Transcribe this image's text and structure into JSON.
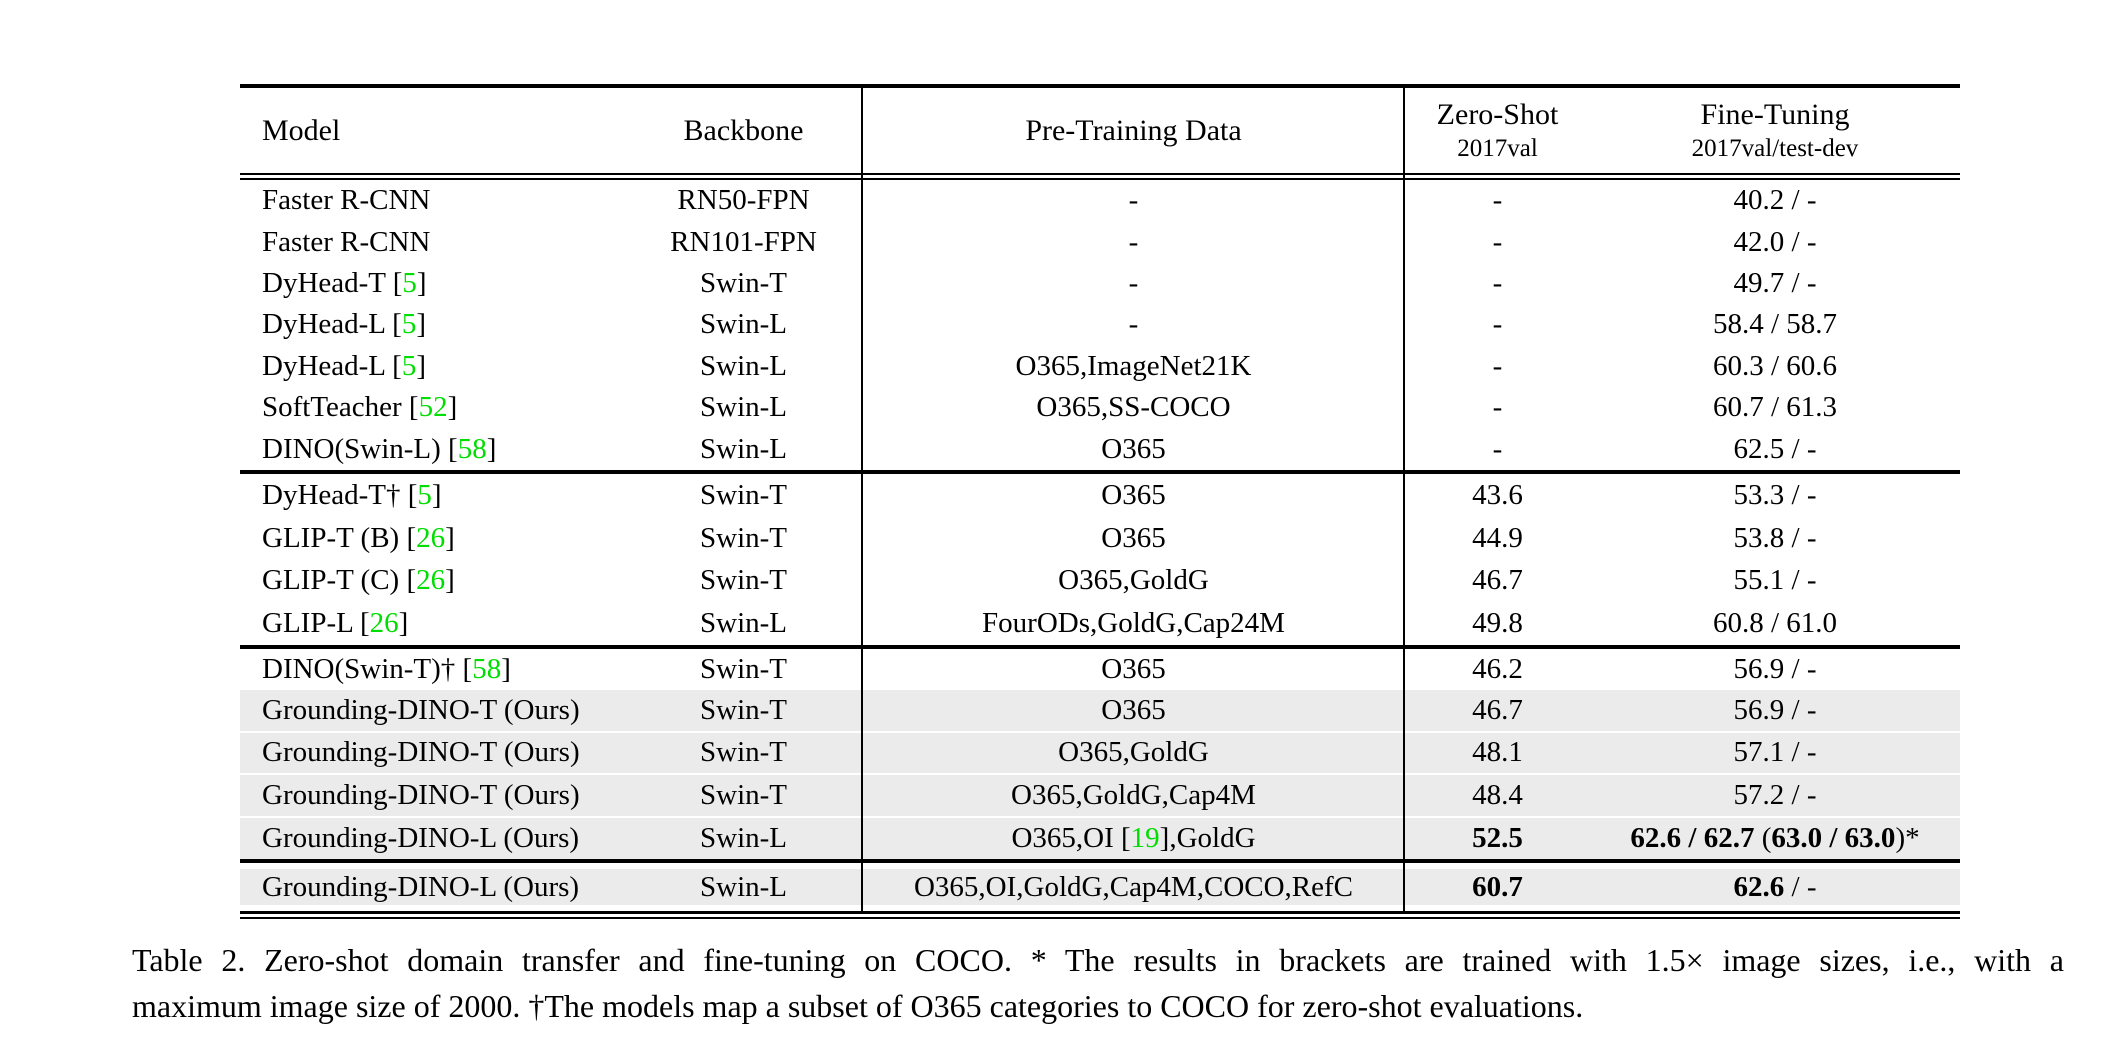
{
  "colors": {
    "citation_green": "#00dd00",
    "row_shade": "#ebebeb",
    "text": "#000000",
    "background": "#ffffff"
  },
  "table": {
    "columns": [
      {
        "id": "model",
        "label": "Model",
        "sub": ""
      },
      {
        "id": "backbone",
        "label": "Backbone",
        "sub": ""
      },
      {
        "id": "pretrain",
        "label": "Pre-Training Data",
        "sub": ""
      },
      {
        "id": "zeroshot",
        "label": "Zero-Shot",
        "sub": "2017val"
      },
      {
        "id": "finetuning",
        "label": "Fine-Tuning",
        "sub": "2017val/test-dev"
      }
    ],
    "sections": [
      {
        "rows": [
          {
            "shaded": false,
            "cells": {
              "model": [
                {
                  "t": "Faster R-CNN"
                }
              ],
              "backbone": [
                {
                  "t": "RN50-FPN"
                }
              ],
              "pretrain": [
                {
                  "t": "-"
                }
              ],
              "zeroshot": [
                {
                  "t": "-"
                }
              ],
              "finetuning": [
                {
                  "t": "40.2 / -"
                }
              ]
            }
          },
          {
            "shaded": false,
            "cells": {
              "model": [
                {
                  "t": "Faster R-CNN"
                }
              ],
              "backbone": [
                {
                  "t": "RN101-FPN"
                }
              ],
              "pretrain": [
                {
                  "t": "-"
                }
              ],
              "zeroshot": [
                {
                  "t": "-"
                }
              ],
              "finetuning": [
                {
                  "t": "42.0 / -"
                }
              ]
            }
          },
          {
            "shaded": false,
            "cells": {
              "model": [
                {
                  "t": "DyHead-T ["
                },
                {
                  "t": "5",
                  "g": true
                },
                {
                  "t": "]"
                }
              ],
              "backbone": [
                {
                  "t": "Swin-T"
                }
              ],
              "pretrain": [
                {
                  "t": "-"
                }
              ],
              "zeroshot": [
                {
                  "t": "-"
                }
              ],
              "finetuning": [
                {
                  "t": "49.7 / -"
                }
              ]
            }
          },
          {
            "shaded": false,
            "cells": {
              "model": [
                {
                  "t": "DyHead-L ["
                },
                {
                  "t": "5",
                  "g": true
                },
                {
                  "t": "]"
                }
              ],
              "backbone": [
                {
                  "t": "Swin-L"
                }
              ],
              "pretrain": [
                {
                  "t": "-"
                }
              ],
              "zeroshot": [
                {
                  "t": "-"
                }
              ],
              "finetuning": [
                {
                  "t": "58.4 / 58.7"
                }
              ]
            }
          },
          {
            "shaded": false,
            "cells": {
              "model": [
                {
                  "t": "DyHead-L ["
                },
                {
                  "t": "5",
                  "g": true
                },
                {
                  "t": "]"
                }
              ],
              "backbone": [
                {
                  "t": "Swin-L"
                }
              ],
              "pretrain": [
                {
                  "t": "O365,ImageNet21K"
                }
              ],
              "zeroshot": [
                {
                  "t": "-"
                }
              ],
              "finetuning": [
                {
                  "t": "60.3 / 60.6"
                }
              ]
            }
          },
          {
            "shaded": false,
            "cells": {
              "model": [
                {
                  "t": "SoftTeacher ["
                },
                {
                  "t": "52",
                  "g": true
                },
                {
                  "t": "]"
                }
              ],
              "backbone": [
                {
                  "t": "Swin-L"
                }
              ],
              "pretrain": [
                {
                  "t": "O365,SS-COCO"
                }
              ],
              "zeroshot": [
                {
                  "t": "-"
                }
              ],
              "finetuning": [
                {
                  "t": "60.7 / 61.3"
                }
              ]
            }
          },
          {
            "shaded": false,
            "cells": {
              "model": [
                {
                  "t": "DINO(Swin-L) ["
                },
                {
                  "t": "58",
                  "g": true
                },
                {
                  "t": "]"
                }
              ],
              "backbone": [
                {
                  "t": "Swin-L"
                }
              ],
              "pretrain": [
                {
                  "t": "O365"
                }
              ],
              "zeroshot": [
                {
                  "t": "-"
                }
              ],
              "finetuning": [
                {
                  "t": "62.5 / -"
                }
              ]
            }
          }
        ]
      },
      {
        "rows": [
          {
            "shaded": false,
            "cells": {
              "model": [
                {
                  "t": "DyHead-T† ["
                },
                {
                  "t": "5",
                  "g": true
                },
                {
                  "t": "]"
                }
              ],
              "backbone": [
                {
                  "t": "Swin-T"
                }
              ],
              "pretrain": [
                {
                  "t": "O365"
                }
              ],
              "zeroshot": [
                {
                  "t": "43.6"
                }
              ],
              "finetuning": [
                {
                  "t": "53.3 / -"
                }
              ]
            }
          },
          {
            "shaded": false,
            "cells": {
              "model": [
                {
                  "t": "GLIP-T (B) ["
                },
                {
                  "t": "26",
                  "g": true
                },
                {
                  "t": "]"
                }
              ],
              "backbone": [
                {
                  "t": "Swin-T"
                }
              ],
              "pretrain": [
                {
                  "t": "O365"
                }
              ],
              "zeroshot": [
                {
                  "t": "44.9"
                }
              ],
              "finetuning": [
                {
                  "t": "53.8 / -"
                }
              ]
            }
          },
          {
            "shaded": false,
            "cells": {
              "model": [
                {
                  "t": "GLIP-T (C) ["
                },
                {
                  "t": "26",
                  "g": true
                },
                {
                  "t": "]"
                }
              ],
              "backbone": [
                {
                  "t": "Swin-T"
                }
              ],
              "pretrain": [
                {
                  "t": "O365,GoldG"
                }
              ],
              "zeroshot": [
                {
                  "t": "46.7"
                }
              ],
              "finetuning": [
                {
                  "t": "55.1 / -"
                }
              ]
            }
          },
          {
            "shaded": false,
            "cells": {
              "model": [
                {
                  "t": "GLIP-L ["
                },
                {
                  "t": "26",
                  "g": true
                },
                {
                  "t": "]"
                }
              ],
              "backbone": [
                {
                  "t": "Swin-L"
                }
              ],
              "pretrain": [
                {
                  "t": "FourODs,GoldG,Cap24M"
                }
              ],
              "zeroshot": [
                {
                  "t": "49.8"
                }
              ],
              "finetuning": [
                {
                  "t": "60.8 / 61.0"
                }
              ]
            }
          }
        ]
      },
      {
        "rows": [
          {
            "shaded": false,
            "cells": {
              "model": [
                {
                  "t": "DINO(Swin-T)† ["
                },
                {
                  "t": "58",
                  "g": true
                },
                {
                  "t": "]"
                }
              ],
              "backbone": [
                {
                  "t": "Swin-T"
                }
              ],
              "pretrain": [
                {
                  "t": "O365"
                }
              ],
              "zeroshot": [
                {
                  "t": "46.2"
                }
              ],
              "finetuning": [
                {
                  "t": "56.9 / -"
                }
              ]
            }
          },
          {
            "shaded": true,
            "cells": {
              "model": [
                {
                  "t": "Grounding-DINO-T (Ours)"
                }
              ],
              "backbone": [
                {
                  "t": "Swin-T"
                }
              ],
              "pretrain": [
                {
                  "t": "O365"
                }
              ],
              "zeroshot": [
                {
                  "t": "46.7"
                }
              ],
              "finetuning": [
                {
                  "t": "56.9 / -"
                }
              ]
            }
          },
          {
            "shaded": true,
            "cells": {
              "model": [
                {
                  "t": "Grounding-DINO-T (Ours)"
                }
              ],
              "backbone": [
                {
                  "t": "Swin-T"
                }
              ],
              "pretrain": [
                {
                  "t": "O365,GoldG"
                }
              ],
              "zeroshot": [
                {
                  "t": "48.1"
                }
              ],
              "finetuning": [
                {
                  "t": "57.1 / -"
                }
              ]
            }
          },
          {
            "shaded": true,
            "cells": {
              "model": [
                {
                  "t": "Grounding-DINO-T (Ours)"
                }
              ],
              "backbone": [
                {
                  "t": "Swin-T"
                }
              ],
              "pretrain": [
                {
                  "t": "O365,GoldG,Cap4M"
                }
              ],
              "zeroshot": [
                {
                  "t": "48.4"
                }
              ],
              "finetuning": [
                {
                  "t": "57.2 / -"
                }
              ]
            }
          },
          {
            "shaded": true,
            "cells": {
              "model": [
                {
                  "t": "Grounding-DINO-L (Ours)"
                }
              ],
              "backbone": [
                {
                  "t": "Swin-L"
                }
              ],
              "pretrain": [
                {
                  "t": "O365,OI ["
                },
                {
                  "t": "19",
                  "g": true
                },
                {
                  "t": "],GoldG"
                }
              ],
              "zeroshot": [
                {
                  "t": "52.5",
                  "b": true
                }
              ],
              "finetuning": [
                {
                  "t": "62.6 / 62.7",
                  "b": true
                },
                {
                  "t": " ("
                },
                {
                  "t": "63.0 / 63.0",
                  "b": true
                },
                {
                  "t": ")*"
                }
              ]
            }
          }
        ]
      },
      {
        "rows": [
          {
            "shaded": true,
            "cells": {
              "model": [
                {
                  "t": "Grounding-DINO-L (Ours)"
                }
              ],
              "backbone": [
                {
                  "t": "Swin-L"
                }
              ],
              "pretrain": [
                {
                  "t": "O365,OI,GoldG,Cap4M,COCO,RefC"
                }
              ],
              "zeroshot": [
                {
                  "t": "60.7",
                  "b": true
                }
              ],
              "finetuning": [
                {
                  "t": "62.6",
                  "b": true
                },
                {
                  "t": " / -"
                }
              ]
            }
          }
        ]
      }
    ]
  },
  "caption": {
    "line1": "Table 2.  Zero-shot domain transfer and fine-tuning on COCO. * The results in brackets are trained with 1.5× image sizes, i.e., with a",
    "line2": "maximum image size of 2000. †The models map a subset of O365 categories to COCO for zero-shot evaluations."
  }
}
